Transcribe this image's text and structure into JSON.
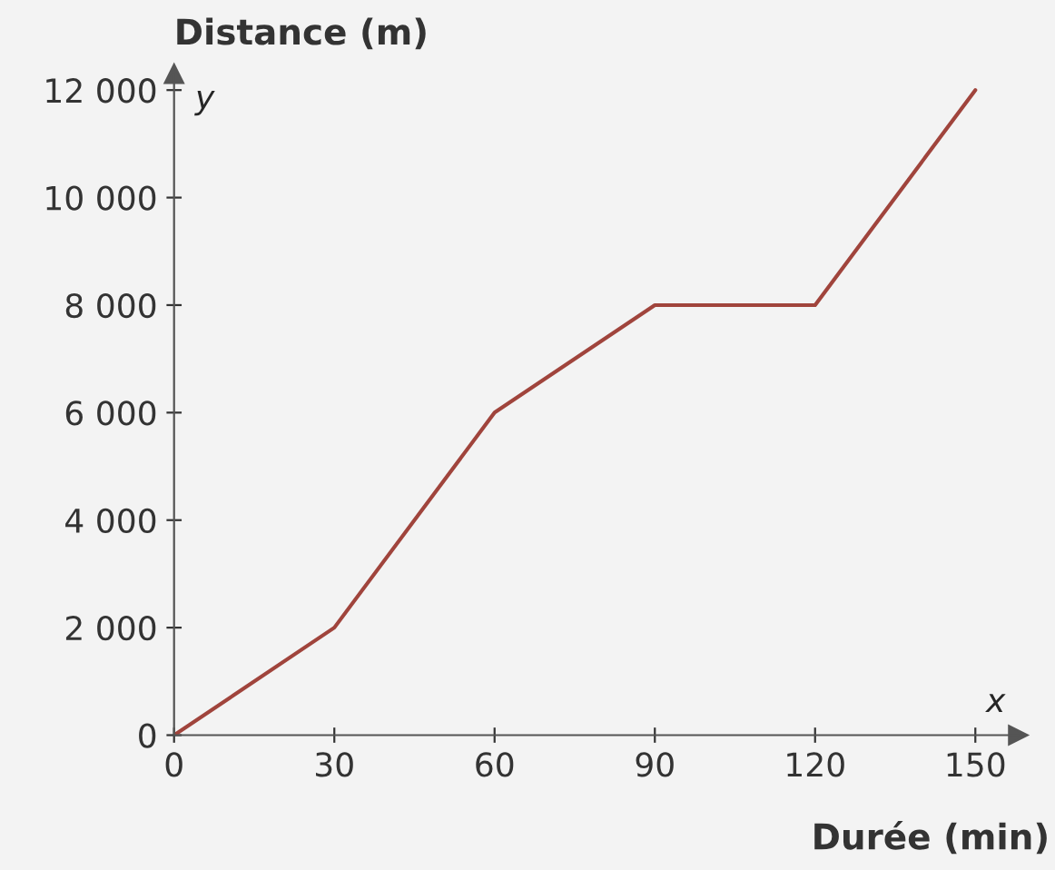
{
  "chart_data": {
    "type": "line",
    "xlabel": "Durée (min)",
    "ylabel": "Distance (m)",
    "annotations": [
      "x",
      "y"
    ],
    "x": [
      0,
      30,
      60,
      90,
      120,
      150
    ],
    "series": [
      {
        "color": "#a0443c",
        "values": [
          0,
          2000,
          6000,
          8000,
          8000,
          12000
        ]
      }
    ],
    "xlim": [
      0,
      158
    ],
    "ylim": [
      0,
      12300
    ],
    "xticks": [
      0,
      30,
      60,
      90,
      120,
      150
    ],
    "yticks": [
      0,
      {
        "value": 2000,
        "label": "2 000"
      },
      {
        "value": 4000,
        "label": "4 000"
      },
      {
        "value": 6000,
        "label": "6 000"
      },
      {
        "value": 8000,
        "label": "8 000"
      },
      {
        "value": 10000,
        "label": "10 000"
      },
      {
        "value": 12000,
        "label": "12 000"
      }
    ],
    "grid": false,
    "legend": false,
    "marker": "none",
    "line_style": "solid"
  }
}
